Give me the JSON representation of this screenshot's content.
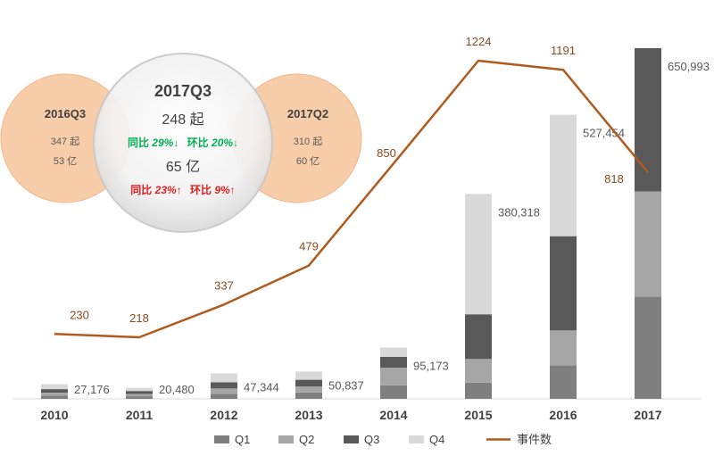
{
  "chart_data": {
    "type": "bar",
    "categories": [
      "2010",
      "2011",
      "2012",
      "2013",
      "2014",
      "2015",
      "2016",
      "2017"
    ],
    "series": [
      {
        "name": "Q1",
        "color": "#7f7f7f",
        "values": [
          6000,
          4800,
          9500,
          12000,
          25000,
          30000,
          62000,
          190000
        ]
      },
      {
        "name": "Q2",
        "color": "#a6a6a6",
        "values": [
          5500,
          4200,
          9800,
          11000,
          33000,
          44000,
          65000,
          195000
        ]
      },
      {
        "name": "Q3",
        "color": "#595959",
        "values": [
          6500,
          5500,
          11500,
          12500,
          20000,
          83000,
          175000,
          265993
        ]
      },
      {
        "name": "Q4",
        "color": "#d9d9d9",
        "values": [
          9176,
          5980,
          16544,
          15337,
          17173,
          223318,
          225454,
          0
        ]
      }
    ],
    "totals": [
      "27,176",
      "20,480",
      "47,344",
      "50,837",
      "95,173",
      "380,318",
      "527,454",
      "650,993"
    ],
    "line": {
      "name": "事件数",
      "color": "#b05a1e",
      "values": [
        230,
        218,
        337,
        479,
        850,
        1224,
        1191,
        818
      ],
      "labels": [
        "230",
        "218",
        "337",
        "479",
        "850",
        "1224",
        "1191",
        "818"
      ]
    },
    "legend": [
      "Q1",
      "Q2",
      "Q3",
      "Q4",
      "事件数"
    ]
  },
  "callout": {
    "center": {
      "title": "2017Q3",
      "count": "248 起",
      "count_change_yoy_label": "同比",
      "count_change_yoy": "29%↓",
      "count_change_qoq_label": "环比",
      "count_change_qoq": "20%↓",
      "amount": "65 亿",
      "amount_change_yoy_label": "同比",
      "amount_change_yoy": "23%↑",
      "amount_change_qoq_label": "环比",
      "amount_change_qoq": "9%↑"
    },
    "left": {
      "title": "2016Q3",
      "count": "347 起",
      "amount": "53 亿"
    },
    "right": {
      "title": "2017Q2",
      "count": "310 起",
      "amount": "60 亿"
    },
    "colors": {
      "peach": "#f8cba6",
      "down": "#00b050",
      "up": "#e02020"
    }
  }
}
